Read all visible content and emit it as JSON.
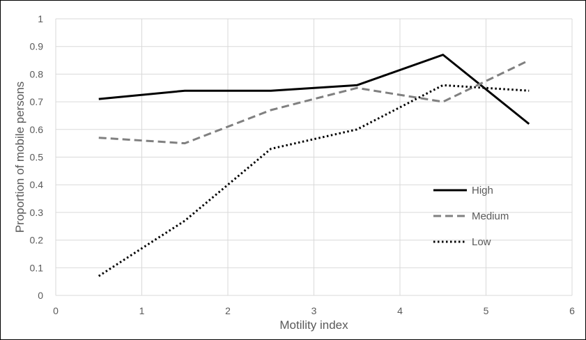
{
  "chart_data": {
    "type": "line",
    "xlabel": "Motility index",
    "ylabel": "Proportion of mobile persons",
    "xlim": [
      0,
      6
    ],
    "ylim": [
      0,
      1
    ],
    "x_ticks": [
      "0",
      "1",
      "2",
      "3",
      "4",
      "5",
      "6"
    ],
    "y_ticks": [
      "0",
      "0.1",
      "0.2",
      "0.3",
      "0.4",
      "0.5",
      "0.6",
      "0.7",
      "0.8",
      "0.9",
      "1"
    ],
    "grid": true,
    "legend_position": "right",
    "x": [
      0.5,
      1.5,
      2.5,
      3.5,
      4.5,
      5.5
    ],
    "series": [
      {
        "name": "High",
        "values": [
          0.71,
          0.74,
          0.74,
          0.76,
          0.87,
          0.62
        ],
        "color": "#000000",
        "dash": "solid"
      },
      {
        "name": "Medium",
        "values": [
          0.57,
          0.55,
          0.67,
          0.75,
          0.7,
          0.85
        ],
        "color": "#808080",
        "dash": "dashed"
      },
      {
        "name": "Low",
        "values": [
          0.07,
          0.27,
          0.53,
          0.6,
          0.76,
          0.74
        ],
        "color": "#000000",
        "dash": "dotted"
      }
    ]
  }
}
